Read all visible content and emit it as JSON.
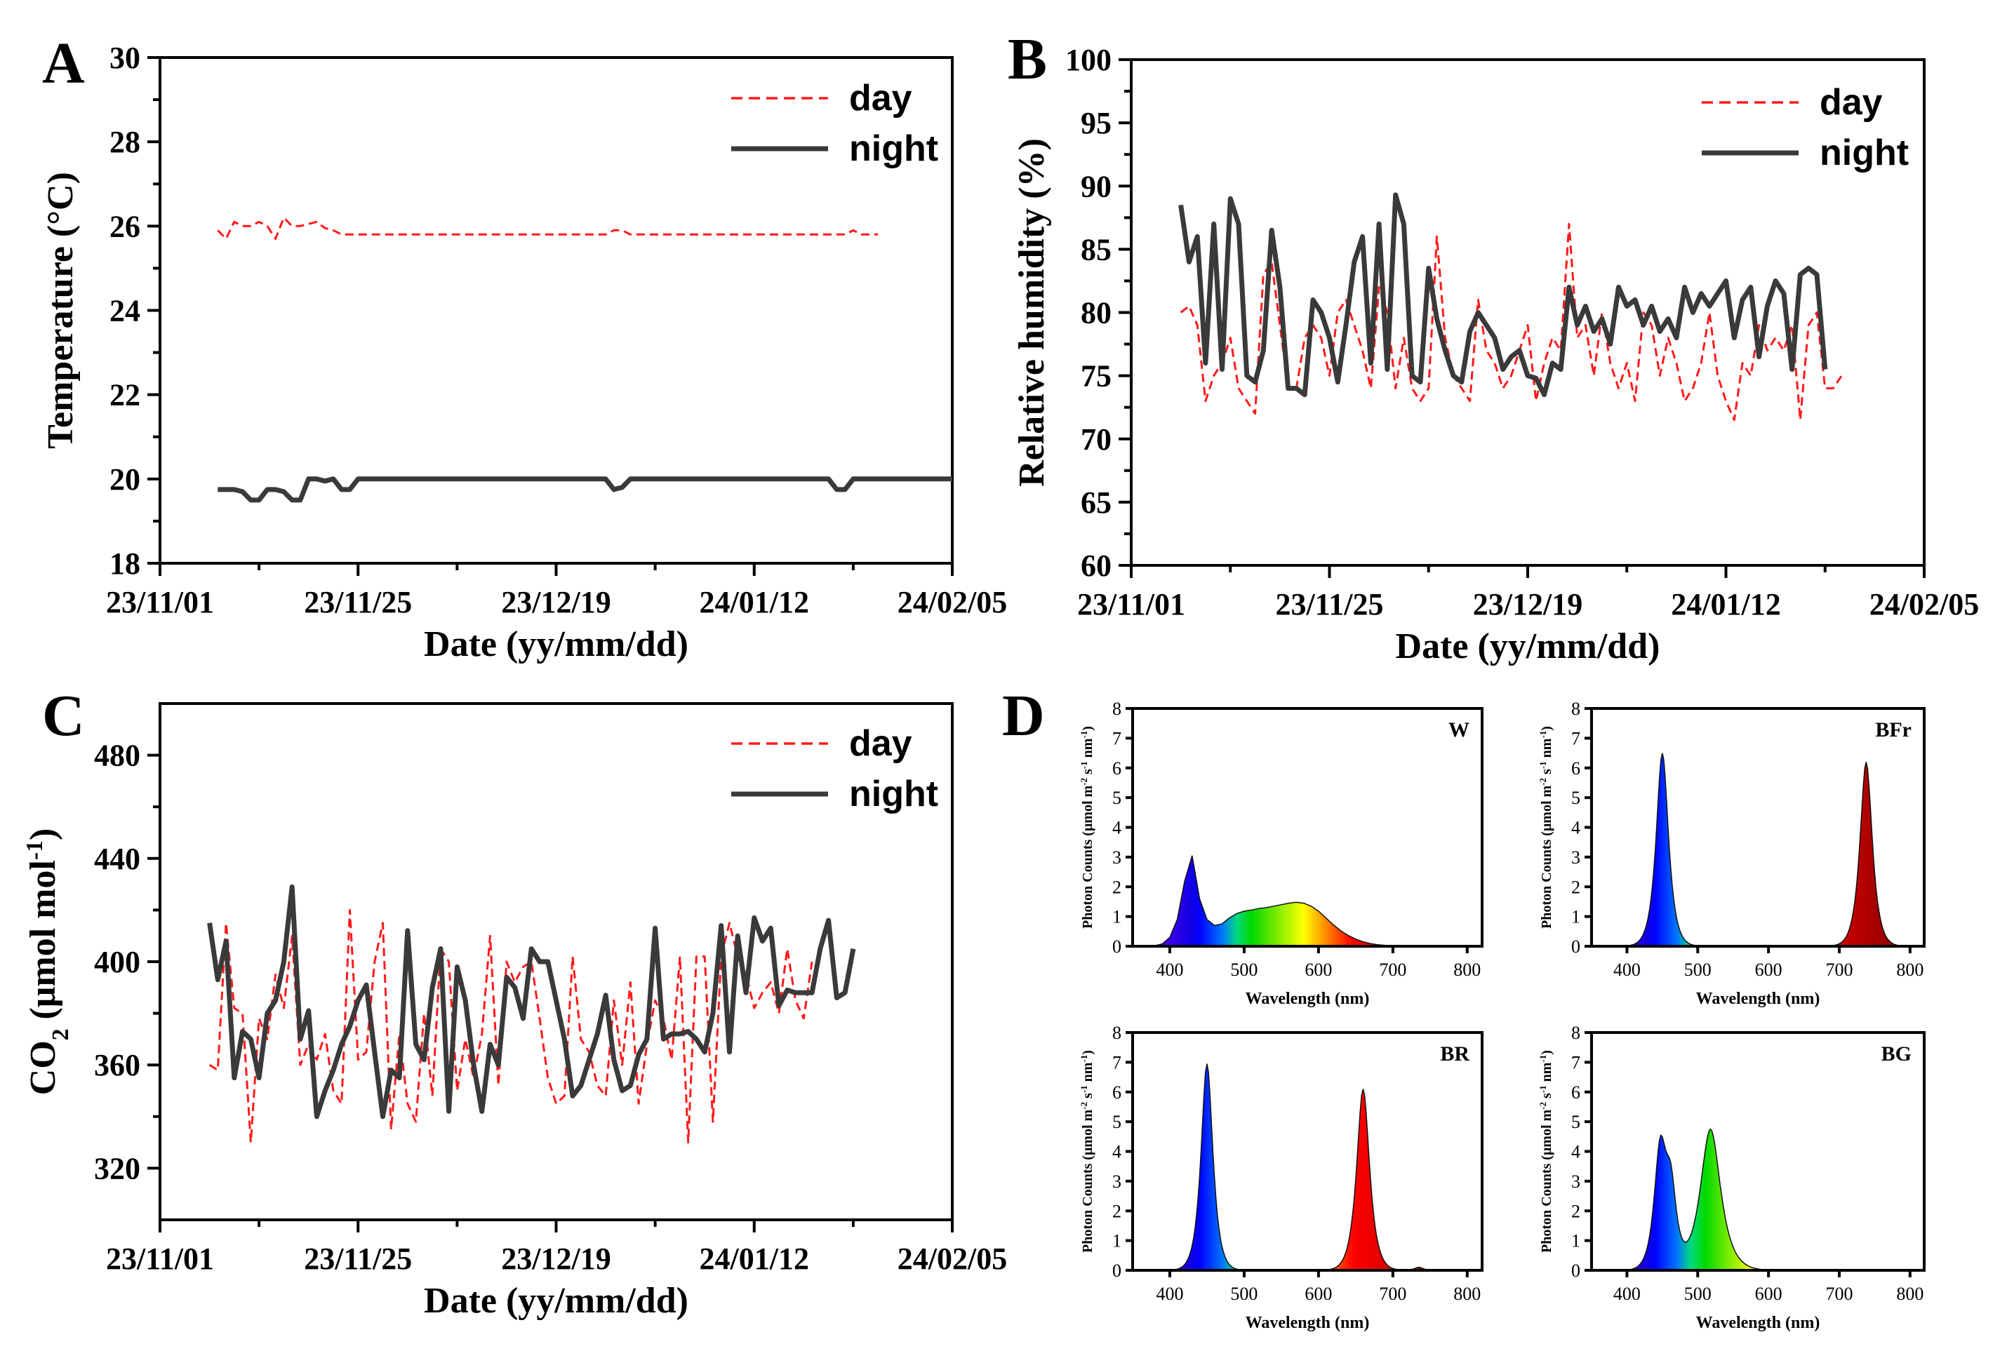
{
  "figure": {
    "panels": [
      {
        "letter": "A"
      },
      {
        "letter": "B"
      },
      {
        "letter": "C"
      },
      {
        "letter": "D"
      }
    ]
  },
  "colors": {
    "day": "#ff1a1a",
    "night": "#3a3a3a",
    "axis": "#000000"
  },
  "chart_data": [
    {
      "id": "A",
      "type": "line",
      "title": "",
      "xlabel": "Date (yy/mm/dd)",
      "ylabel": "Temperature (°C)",
      "xticks": [
        "23/11/01",
        "23/11/25",
        "23/12/19",
        "24/01/12",
        "24/02/05"
      ],
      "xlim": [
        0,
        96
      ],
      "ylim": [
        18,
        30
      ],
      "yticks": [
        18,
        20,
        22,
        24,
        26,
        28,
        30
      ],
      "legend": {
        "position": "top-right",
        "entries": [
          "day",
          "night"
        ]
      },
      "series": [
        {
          "name": "day",
          "style": "dashed",
          "color": "#ff1a1a",
          "x_start": 7,
          "x_step": 1,
          "values": [
            25.9,
            25.7,
            26.1,
            26.0,
            26.0,
            26.1,
            26.0,
            25.7,
            26.2,
            26.0,
            26.0,
            26.05,
            26.1,
            25.95,
            25.9,
            25.8,
            25.8,
            25.8,
            25.8,
            25.8,
            25.8,
            25.8,
            25.8,
            25.8,
            25.8,
            25.8,
            25.8,
            25.8,
            25.8,
            25.8,
            25.8,
            25.8,
            25.8,
            25.8,
            25.8,
            25.8,
            25.8,
            25.8,
            25.8,
            25.8,
            25.8,
            25.8,
            25.8,
            25.8,
            25.8,
            25.8,
            25.8,
            25.8,
            25.9,
            25.9,
            25.8,
            25.8,
            25.8,
            25.8,
            25.8,
            25.8,
            25.8,
            25.8,
            25.8,
            25.8,
            25.8,
            25.8,
            25.8,
            25.8,
            25.8,
            25.8,
            25.8,
            25.8,
            25.8,
            25.8,
            25.8,
            25.8,
            25.8,
            25.8,
            25.8,
            25.8,
            25.8,
            25.9,
            25.8,
            25.8,
            25.8
          ]
        },
        {
          "name": "night",
          "style": "solid",
          "color": "#3a3a3a",
          "x_start": 7,
          "x_step": 1,
          "values": [
            19.75,
            19.75,
            19.75,
            19.7,
            19.5,
            19.5,
            19.75,
            19.75,
            19.7,
            19.5,
            19.5,
            20.0,
            20.0,
            19.95,
            20.0,
            19.75,
            19.75,
            20.0,
            20.0,
            20.0,
            20.0,
            20.0,
            20.0,
            20.0,
            20.0,
            20.0,
            20.0,
            20.0,
            20.0,
            20.0,
            20.0,
            20.0,
            20.0,
            20.0,
            20.0,
            20.0,
            20.0,
            20.0,
            20.0,
            20.0,
            20.0,
            20.0,
            20.0,
            20.0,
            20.0,
            20.0,
            20.0,
            20.0,
            19.75,
            19.8,
            20.0,
            20.0,
            20.0,
            20.0,
            20.0,
            20.0,
            20.0,
            20.0,
            20.0,
            20.0,
            20.0,
            20.0,
            20.0,
            20.0,
            20.0,
            20.0,
            20.0,
            20.0,
            20.0,
            20.0,
            20.0,
            20.0,
            20.0,
            20.0,
            20.0,
            19.75,
            19.75,
            20.0,
            20.0,
            20.0,
            20.0,
            20.0,
            20.0,
            20.0,
            20.0,
            20.0,
            20.0,
            20.0,
            20.0,
            20.0
          ]
        }
      ]
    },
    {
      "id": "B",
      "type": "line",
      "xlabel": "Date (yy/mm/dd)",
      "ylabel": "Relative humidity (%)",
      "xticks": [
        "23/11/01",
        "23/11/25",
        "23/12/19",
        "24/01/12",
        "24/02/05"
      ],
      "xlim": [
        0,
        96
      ],
      "ylim": [
        60,
        100
      ],
      "yticks": [
        60,
        65,
        70,
        75,
        80,
        85,
        90,
        95,
        100
      ],
      "legend": {
        "position": "top-right",
        "entries": [
          "day",
          "night"
        ]
      },
      "series": [
        {
          "name": "day",
          "style": "dashed",
          "color": "#ff1a1a",
          "x_start": 6,
          "x_step": 1,
          "values": [
            80,
            80.5,
            79,
            73,
            75,
            76,
            78,
            74,
            73,
            72,
            83,
            84,
            79,
            74,
            74,
            78,
            79,
            78,
            75,
            80,
            81,
            79,
            77,
            74,
            82,
            80,
            74,
            78,
            74,
            73,
            74,
            86,
            78,
            75,
            74,
            73,
            81,
            77,
            76,
            74,
            75,
            77,
            79,
            73,
            76,
            78,
            77,
            87,
            78,
            79,
            75,
            80,
            76,
            74,
            76,
            73,
            80,
            79,
            75,
            78,
            76,
            73,
            74,
            76,
            80,
            75,
            73,
            71.5,
            76,
            75,
            79,
            77,
            78,
            77,
            79,
            71.5,
            79,
            80,
            74,
            74,
            75
          ]
        },
        {
          "name": "night",
          "style": "solid",
          "color": "#3a3a3a",
          "x_start": 6,
          "x_step": 1,
          "values": [
            88.5,
            84,
            86,
            76,
            87,
            75.5,
            89,
            87,
            75,
            74.5,
            77,
            86.5,
            82,
            74,
            74,
            73.5,
            81,
            80,
            78,
            74.5,
            79,
            84,
            86,
            76,
            87,
            75.5,
            89.3,
            87,
            75,
            74.5,
            83.5,
            79.5,
            77,
            75,
            74.5,
            78.5,
            80,
            79,
            78,
            75.5,
            76.5,
            77,
            75,
            74.8,
            73.5,
            76,
            75.5,
            82,
            79,
            80.5,
            78.5,
            79.5,
            77.5,
            82,
            80.5,
            81,
            79,
            80.5,
            78.5,
            79.5,
            78,
            82,
            80,
            81.5,
            80.5,
            81.5,
            82.5,
            78,
            81,
            82,
            76.5,
            80.5,
            82.5,
            81.5,
            75.5,
            83,
            83.5,
            83,
            75.5
          ]
        }
      ]
    },
    {
      "id": "C",
      "type": "line",
      "xlabel": "Date (yy/mm/dd)",
      "ylabel": "CO2 (μmol mol-1)",
      "ylabel_parts": {
        "pre": "CO",
        "sub": "2",
        "mid": " (μmol mol",
        "sup": "-1",
        "post": ")"
      },
      "xticks": [
        "23/11/01",
        "23/11/25",
        "23/12/19",
        "24/01/12",
        "24/02/05"
      ],
      "xlim": [
        0,
        96
      ],
      "ylim": [
        300,
        500
      ],
      "yticks": [
        320,
        360,
        400,
        440,
        480
      ],
      "legend": {
        "position": "top-right",
        "entries": [
          "day",
          "night"
        ]
      },
      "series": [
        {
          "name": "day",
          "style": "dashed",
          "color": "#ff1a1a",
          "x_start": 6,
          "x_step": 1,
          "values": [
            360,
            358,
            415,
            382,
            380,
            330,
            378,
            370,
            395,
            382,
            410,
            360,
            368,
            362,
            372,
            350,
            345,
            420,
            362,
            365,
            400,
            415,
            335,
            372,
            345,
            338,
            380,
            348,
            405,
            400,
            350,
            370,
            355,
            372,
            410,
            352,
            400,
            392,
            398,
            400,
            378,
            355,
            345,
            348,
            402,
            370,
            365,
            352,
            348,
            385,
            360,
            392,
            345,
            368,
            385,
            378,
            362,
            402,
            330,
            402,
            402,
            338,
            402,
            415,
            402,
            395,
            382,
            388,
            392,
            380,
            405,
            385,
            378,
            400
          ]
        },
        {
          "name": "night",
          "style": "solid",
          "color": "#3a3a3a",
          "x_start": 6,
          "x_step": 1,
          "values": [
            415,
            393,
            408,
            355,
            373,
            370,
            355,
            380,
            385,
            400,
            429,
            370,
            381,
            340,
            350,
            358,
            368,
            375,
            385,
            391,
            365,
            340,
            358,
            355,
            412,
            368,
            362,
            390,
            405,
            342,
            398,
            385,
            360,
            342,
            368,
            360,
            394,
            390,
            378,
            405,
            400,
            400,
            385,
            370,
            348,
            352,
            362,
            372,
            387,
            362,
            350,
            352,
            364,
            370,
            413,
            370,
            372,
            372,
            373,
            370,
            365,
            380,
            414,
            365,
            410,
            388,
            417,
            408,
            413,
            383,
            389,
            388,
            388,
            388,
            405,
            416,
            386,
            388,
            405
          ]
        }
      ]
    },
    {
      "id": "D-W",
      "type": "area",
      "label": "W",
      "xlabel": "Wavelength (nm)",
      "ylabel": "Photon Counts (μmol m-2 s-1 nm-1)",
      "ylabel_parts": {
        "a": "Photon Counts (μmol m",
        "s1": "-2",
        "b": " s",
        "s2": "-1",
        "c": " nm",
        "s3": "-1",
        "d": ")"
      },
      "xlim": [
        350,
        820
      ],
      "xticks": [
        400,
        500,
        600,
        700,
        800
      ],
      "ylim": [
        0,
        8
      ],
      "yticks": [
        0,
        1,
        2,
        3,
        4,
        5,
        6,
        7,
        8
      ],
      "x_start": 380,
      "x_step": 10,
      "values": [
        0.02,
        0.08,
        0.3,
        0.9,
        2.2,
        3.05,
        1.6,
        0.9,
        0.7,
        0.75,
        0.95,
        1.1,
        1.18,
        1.22,
        1.27,
        1.3,
        1.35,
        1.4,
        1.45,
        1.48,
        1.45,
        1.35,
        1.18,
        0.95,
        0.72,
        0.52,
        0.36,
        0.24,
        0.15,
        0.09,
        0.05,
        0.03,
        0.02,
        0.01,
        0.0,
        0.0,
        0.0,
        0.0,
        0.0,
        0.0,
        0.0,
        0.0,
        0.0
      ]
    },
    {
      "id": "D-BFr",
      "type": "area",
      "label": "BFr",
      "xlabel": "Wavelength (nm)",
      "ylabel": "Photon Counts (μmol m-2 s-1 nm-1)",
      "xlim": [
        350,
        820
      ],
      "xticks": [
        400,
        500,
        600,
        700,
        800
      ],
      "ylim": [
        0,
        8
      ],
      "yticks": [
        0,
        1,
        2,
        3,
        4,
        5,
        6,
        7,
        8
      ],
      "peaks": [
        {
          "center": 450,
          "height": 6.5,
          "width": 12
        },
        {
          "center": 738,
          "height": 6.2,
          "width": 12
        }
      ]
    },
    {
      "id": "D-BR",
      "type": "area",
      "label": "BR",
      "xlabel": "Wavelength (nm)",
      "ylabel": "Photon Counts (μmol m-2 s-1 nm-1)",
      "xlim": [
        350,
        820
      ],
      "xticks": [
        400,
        500,
        600,
        700,
        800
      ],
      "ylim": [
        0,
        8
      ],
      "yticks": [
        0,
        1,
        2,
        3,
        4,
        5,
        6,
        7,
        8
      ],
      "peaks": [
        {
          "center": 450,
          "height": 6.95,
          "width": 11
        },
        {
          "center": 660,
          "height": 6.1,
          "width": 12
        },
        {
          "center": 735,
          "height": 0.1,
          "width": 8
        }
      ]
    },
    {
      "id": "D-BG",
      "type": "area",
      "label": "BG",
      "xlabel": "Wavelength (nm)",
      "ylabel": "Photon Counts (μmol m-2 s-1 nm-1)",
      "xlim": [
        350,
        820
      ],
      "xticks": [
        400,
        500,
        600,
        700,
        800
      ],
      "ylim": [
        0,
        8
      ],
      "yticks": [
        0,
        1,
        2,
        3,
        4,
        5,
        6,
        7,
        8
      ],
      "peaks": [
        {
          "center": 447,
          "height": 3.9,
          "width": 12
        },
        {
          "center": 462,
          "height": 2.4,
          "width": 11
        },
        {
          "center": 518,
          "height": 4.75,
          "width": 20
        }
      ]
    }
  ]
}
